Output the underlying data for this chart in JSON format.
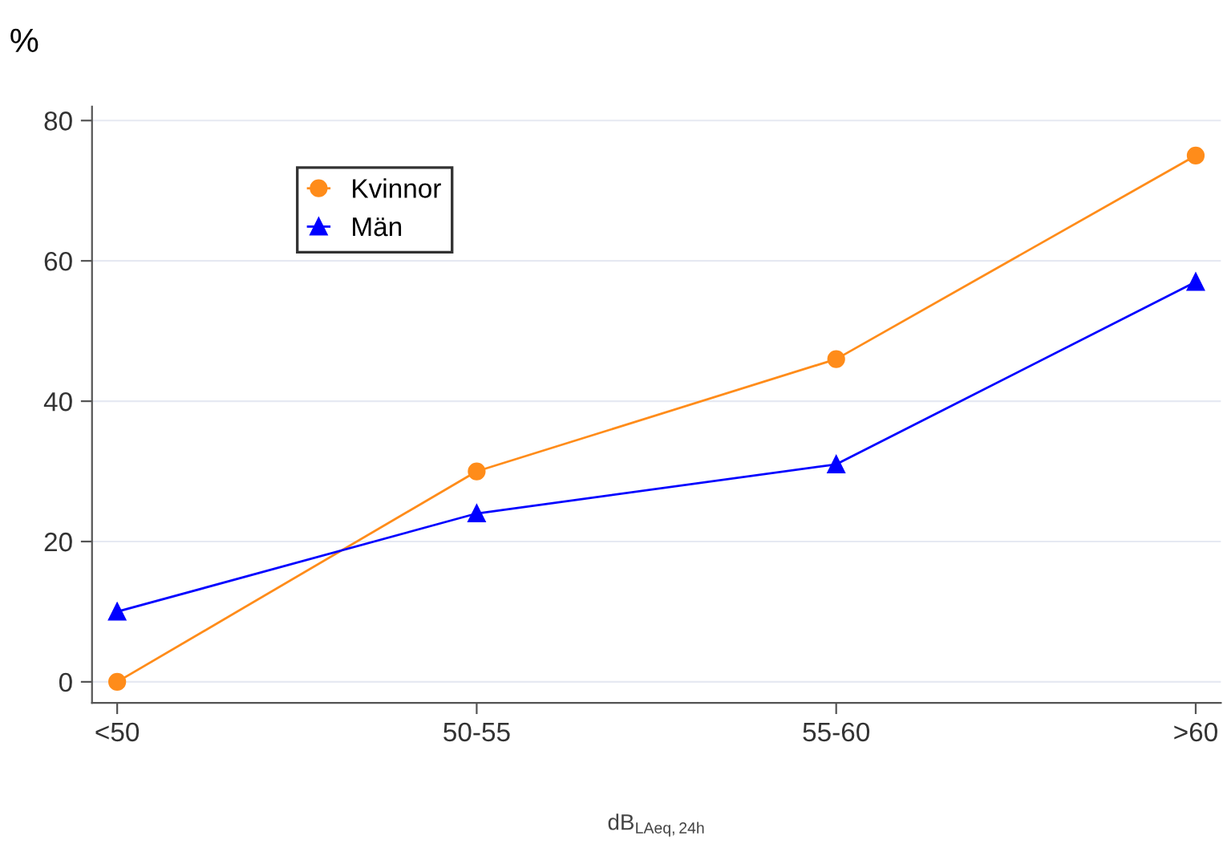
{
  "chart_data": {
    "type": "line",
    "ylabel": "%",
    "xlabel": "dB$_{LAeq,24h}$",
    "categories": [
      "<50",
      "50-55",
      "55-60",
      ">60"
    ],
    "series": [
      {
        "name": "Kvinnor",
        "color": "#ff8c1a",
        "marker": "circle",
        "values": [
          0,
          30,
          46,
          75
        ]
      },
      {
        "name": "Män",
        "color": "#0000ff",
        "marker": "triangle",
        "values": [
          10,
          24,
          31,
          57
        ]
      }
    ],
    "ylim": [
      -3,
      82
    ],
    "yticks": [
      0,
      20,
      40,
      60,
      80
    ],
    "grid": "y",
    "legend": "top left"
  }
}
